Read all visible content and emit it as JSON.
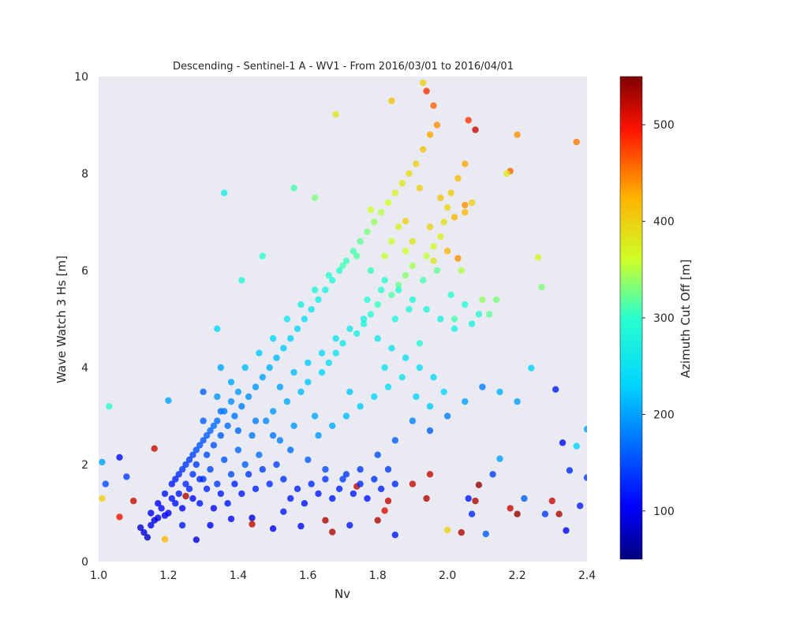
{
  "chart_data": {
    "type": "scatter",
    "title": "Descending - Sentinel-1 A - WV1 - From 2016/03/01 to 2016/04/01",
    "xlabel": "Nv",
    "ylabel": "Wave Watch 3 Hs [m]",
    "xlim": [
      1.0,
      2.4
    ],
    "ylim": [
      0,
      10
    ],
    "x_ticks": [
      "1.0",
      "1.2",
      "1.4",
      "1.6",
      "1.8",
      "2.0",
      "2.2",
      "2.4"
    ],
    "y_ticks": [
      "0",
      "2",
      "4",
      "6",
      "8",
      "10"
    ],
    "grid": false,
    "colorbar": {
      "label": "Azimuth Cut Off [m]",
      "range": [
        50,
        550
      ],
      "ticks": [
        "100",
        "200",
        "300",
        "400",
        "500"
      ],
      "colormap": "jet"
    },
    "points": [
      [
        1.13,
        0.6,
        90
      ],
      [
        1.15,
        0.75,
        100
      ],
      [
        1.17,
        0.9,
        95
      ],
      [
        1.12,
        0.7,
        85
      ],
      [
        1.18,
        1.1,
        110
      ],
      [
        1.2,
        1.0,
        100
      ],
      [
        1.14,
        0.5,
        80
      ],
      [
        1.22,
        1.2,
        115
      ],
      [
        1.19,
        0.95,
        105
      ],
      [
        1.16,
        0.85,
        90
      ],
      [
        1.23,
        1.4,
        120
      ],
      [
        1.21,
        1.3,
        115
      ],
      [
        1.25,
        1.6,
        130
      ],
      [
        1.24,
        1.1,
        110
      ],
      [
        1.27,
        1.8,
        135
      ],
      [
        1.26,
        1.5,
        125
      ],
      [
        1.28,
        2.0,
        140
      ],
      [
        1.3,
        1.7,
        140
      ],
      [
        1.29,
        1.2,
        120
      ],
      [
        1.31,
        2.2,
        150
      ],
      [
        1.32,
        1.9,
        145
      ],
      [
        1.33,
        2.4,
        155
      ],
      [
        1.34,
        1.6,
        140
      ],
      [
        1.35,
        2.6,
        160
      ],
      [
        1.36,
        2.1,
        155
      ],
      [
        1.37,
        2.8,
        170
      ],
      [
        1.38,
        1.8,
        150
      ],
      [
        1.39,
        3.0,
        175
      ],
      [
        1.4,
        2.3,
        165
      ],
      [
        1.41,
        3.2,
        180
      ],
      [
        1.42,
        2.0,
        160
      ],
      [
        1.43,
        3.4,
        190
      ],
      [
        1.44,
        2.6,
        175
      ],
      [
        1.45,
        3.6,
        195
      ],
      [
        1.46,
        2.2,
        170
      ],
      [
        1.47,
        3.8,
        200
      ],
      [
        1.48,
        2.9,
        185
      ],
      [
        1.49,
        4.0,
        210
      ],
      [
        1.5,
        3.1,
        195
      ],
      [
        1.51,
        4.2,
        215
      ],
      [
        1.52,
        2.5,
        180
      ],
      [
        1.53,
        4.4,
        225
      ],
      [
        1.54,
        3.3,
        205
      ],
      [
        1.55,
        4.6,
        230
      ],
      [
        1.56,
        2.8,
        195
      ],
      [
        1.57,
        4.8,
        240
      ],
      [
        1.58,
        3.5,
        215
      ],
      [
        1.59,
        5.0,
        250
      ],
      [
        1.6,
        3.7,
        225
      ],
      [
        1.61,
        5.2,
        260
      ],
      [
        1.62,
        3.0,
        205
      ],
      [
        1.63,
        5.4,
        270
      ],
      [
        1.64,
        3.9,
        235
      ],
      [
        1.65,
        5.6,
        280
      ],
      [
        1.66,
        4.1,
        245
      ],
      [
        1.67,
        5.8,
        290
      ],
      [
        1.68,
        4.3,
        255
      ],
      [
        1.69,
        6.0,
        300
      ],
      [
        1.7,
        4.5,
        265
      ],
      [
        1.71,
        6.2,
        305
      ],
      [
        1.72,
        3.5,
        225
      ],
      [
        1.73,
        6.4,
        310
      ],
      [
        1.74,
        4.7,
        275
      ],
      [
        1.75,
        6.6,
        320
      ],
      [
        1.76,
        4.9,
        285
      ],
      [
        1.77,
        6.8,
        330
      ],
      [
        1.78,
        5.1,
        295
      ],
      [
        1.79,
        7.0,
        340
      ],
      [
        1.8,
        5.3,
        305
      ],
      [
        1.81,
        7.2,
        350
      ],
      [
        1.82,
        4.0,
        255
      ],
      [
        1.83,
        7.4,
        360
      ],
      [
        1.84,
        5.5,
        315
      ],
      [
        1.85,
        7.6,
        370
      ],
      [
        1.86,
        5.7,
        325
      ],
      [
        1.87,
        7.8,
        380
      ],
      [
        1.88,
        5.9,
        335
      ],
      [
        1.89,
        8.0,
        390
      ],
      [
        1.9,
        6.1,
        345
      ],
      [
        1.91,
        8.2,
        400
      ],
      [
        1.92,
        4.5,
        290
      ],
      [
        1.93,
        8.5,
        410
      ],
      [
        1.94,
        6.3,
        355
      ],
      [
        1.95,
        8.8,
        430
      ],
      [
        1.96,
        6.5,
        365
      ],
      [
        1.97,
        9.0,
        440
      ],
      [
        1.98,
        6.7,
        375
      ],
      [
        1.99,
        7.0,
        385
      ],
      [
        2.0,
        7.3,
        395
      ],
      [
        2.01,
        7.6,
        405
      ],
      [
        2.02,
        5.0,
        310
      ],
      [
        2.03,
        7.9,
        415
      ],
      [
        2.04,
        6.0,
        350
      ],
      [
        2.05,
        8.2,
        430
      ],
      [
        2.06,
        9.1,
        480
      ],
      [
        2.07,
        7.4,
        400
      ],
      [
        2.08,
        8.9,
        520
      ],
      [
        2.1,
        5.4,
        340
      ],
      [
        2.12,
        5.1,
        320
      ],
      [
        2.14,
        5.4,
        330
      ],
      [
        1.36,
        7.6,
        270
      ],
      [
        1.34,
        4.8,
        235
      ],
      [
        1.03,
        3.2,
        300
      ],
      [
        1.01,
        2.05,
        200
      ],
      [
        1.02,
        1.6,
        150
      ],
      [
        1.01,
        1.3,
        400
      ],
      [
        1.06,
        2.15,
        110
      ],
      [
        1.06,
        0.92,
        500
      ],
      [
        1.1,
        1.25,
        520
      ],
      [
        1.08,
        1.75,
        140
      ],
      [
        1.16,
        2.33,
        520
      ],
      [
        1.19,
        0.46,
        420
      ],
      [
        1.2,
        3.32,
        200
      ],
      [
        1.24,
        0.75,
        120
      ],
      [
        1.25,
        1.35,
        530
      ],
      [
        1.28,
        0.45,
        90
      ],
      [
        1.3,
        3.5,
        160
      ],
      [
        1.32,
        0.75,
        100
      ],
      [
        1.35,
        4.0,
        200
      ],
      [
        1.38,
        0.88,
        110
      ],
      [
        1.44,
        0.9,
        90
      ],
      [
        1.44,
        0.77,
        520
      ],
      [
        1.5,
        0.68,
        100
      ],
      [
        1.53,
        1.03,
        120
      ],
      [
        1.58,
        0.73,
        110
      ],
      [
        1.65,
        0.85,
        530
      ],
      [
        1.67,
        0.61,
        530
      ],
      [
        1.72,
        0.75,
        120
      ],
      [
        1.74,
        1.55,
        520
      ],
      [
        1.8,
        0.85,
        530
      ],
      [
        1.82,
        1.05,
        510
      ],
      [
        1.83,
        1.25,
        520
      ],
      [
        1.85,
        0.55,
        120
      ],
      [
        1.9,
        1.6,
        520
      ],
      [
        1.94,
        1.3,
        530
      ],
      [
        1.95,
        1.8,
        520
      ],
      [
        2.0,
        0.65,
        400
      ],
      [
        2.04,
        0.6,
        530
      ],
      [
        2.06,
        1.3,
        120
      ],
      [
        2.07,
        0.98,
        130
      ],
      [
        2.08,
        1.25,
        530
      ],
      [
        2.09,
        1.58,
        540
      ],
      [
        2.11,
        0.57,
        160
      ],
      [
        2.13,
        1.8,
        140
      ],
      [
        2.15,
        2.12,
        200
      ],
      [
        2.18,
        1.1,
        520
      ],
      [
        2.2,
        0.98,
        540
      ],
      [
        2.22,
        1.3,
        160
      ],
      [
        2.24,
        3.99,
        230
      ],
      [
        2.26,
        6.27,
        370
      ],
      [
        2.27,
        5.66,
        330
      ],
      [
        2.28,
        0.98,
        140
      ],
      [
        2.3,
        1.25,
        520
      ],
      [
        2.31,
        3.55,
        120
      ],
      [
        2.32,
        0.98,
        530
      ],
      [
        2.33,
        2.45,
        110
      ],
      [
        2.34,
        0.64,
        100
      ],
      [
        2.35,
        1.88,
        130
      ],
      [
        2.37,
        2.38,
        230
      ],
      [
        2.37,
        8.65,
        450
      ],
      [
        2.38,
        1.15,
        120
      ],
      [
        2.4,
        1.73,
        140
      ],
      [
        2.4,
        2.73,
        200
      ],
      [
        2.2,
        8.8,
        440
      ],
      [
        2.18,
        8.05,
        460
      ],
      [
        2.17,
        8.0,
        380
      ],
      [
        2.05,
        7.35,
        440
      ],
      [
        2.05,
        7.2,
        420
      ],
      [
        1.96,
        9.4,
        460
      ],
      [
        1.94,
        9.7,
        480
      ],
      [
        1.93,
        9.87,
        400
      ],
      [
        1.84,
        9.5,
        410
      ],
      [
        1.68,
        9.22,
        380
      ],
      [
        1.88,
        7.02,
        400
      ],
      [
        2.0,
        6.4,
        420
      ],
      [
        2.03,
        6.25,
        440
      ],
      [
        1.78,
        7.25,
        360
      ],
      [
        1.62,
        7.5,
        330
      ],
      [
        1.56,
        7.7,
        310
      ],
      [
        1.47,
        6.3,
        300
      ],
      [
        1.41,
        5.8,
        290
      ],
      [
        1.3,
        2.9,
        160
      ],
      [
        1.35,
        3.1,
        170
      ],
      [
        1.4,
        2.7,
        165
      ],
      [
        1.45,
        2.9,
        180
      ],
      [
        1.5,
        2.6,
        175
      ],
      [
        1.55,
        2.3,
        170
      ],
      [
        1.6,
        2.1,
        160
      ],
      [
        1.65,
        1.9,
        150
      ],
      [
        1.7,
        1.7,
        140
      ],
      [
        1.75,
        1.9,
        140
      ],
      [
        1.8,
        2.2,
        150
      ],
      [
        1.85,
        2.5,
        160
      ],
      [
        1.9,
        2.9,
        180
      ],
      [
        1.95,
        2.7,
        160
      ],
      [
        2.0,
        3.0,
        180
      ],
      [
        2.05,
        3.3,
        200
      ],
      [
        2.1,
        3.6,
        180
      ],
      [
        2.15,
        3.5,
        210
      ],
      [
        2.2,
        3.3,
        200
      ],
      [
        1.27,
        1.3,
        110
      ],
      [
        1.29,
        1.7,
        130
      ],
      [
        1.31,
        1.5,
        125
      ],
      [
        1.33,
        1.1,
        110
      ],
      [
        1.35,
        1.4,
        120
      ],
      [
        1.37,
        1.2,
        115
      ],
      [
        1.39,
        1.6,
        125
      ],
      [
        1.41,
        1.4,
        120
      ],
      [
        1.43,
        1.8,
        135
      ],
      [
        1.45,
        1.5,
        125
      ],
      [
        1.47,
        1.9,
        140
      ],
      [
        1.49,
        1.6,
        130
      ],
      [
        1.51,
        2.0,
        145
      ],
      [
        1.53,
        1.7,
        135
      ],
      [
        1.55,
        1.3,
        120
      ],
      [
        1.57,
        1.5,
        125
      ],
      [
        1.59,
        1.2,
        115
      ],
      [
        1.61,
        1.6,
        130
      ],
      [
        1.63,
        1.4,
        120
      ],
      [
        1.65,
        1.7,
        135
      ],
      [
        1.67,
        1.3,
        115
      ],
      [
        1.69,
        1.5,
        125
      ],
      [
        1.71,
        1.8,
        140
      ],
      [
        1.73,
        1.4,
        120
      ],
      [
        1.75,
        1.6,
        130
      ],
      [
        1.77,
        1.3,
        115
      ],
      [
        1.79,
        1.7,
        135
      ],
      [
        1.81,
        1.5,
        125
      ],
      [
        1.83,
        1.9,
        140
      ],
      [
        1.85,
        1.6,
        130
      ],
      [
        1.52,
        3.6,
        200
      ],
      [
        1.56,
        3.9,
        215
      ],
      [
        1.6,
        4.1,
        225
      ],
      [
        1.64,
        4.3,
        240
      ],
      [
        1.68,
        4.6,
        255
      ],
      [
        1.72,
        4.8,
        265
      ],
      [
        1.76,
        5.0,
        275
      ],
      [
        1.8,
        4.6,
        260
      ],
      [
        1.84,
        4.4,
        255
      ],
      [
        1.88,
        4.2,
        250
      ],
      [
        1.92,
        4.0,
        245
      ],
      [
        1.96,
        3.8,
        240
      ],
      [
        1.54,
        5.0,
        260
      ],
      [
        1.58,
        5.3,
        270
      ],
      [
        1.62,
        5.6,
        285
      ],
      [
        1.66,
        5.9,
        300
      ],
      [
        1.7,
        6.1,
        310
      ],
      [
        1.74,
        6.3,
        315
      ],
      [
        1.78,
        6.0,
        305
      ],
      [
        1.82,
        5.8,
        300
      ],
      [
        1.86,
        5.6,
        295
      ],
      [
        1.9,
        5.4,
        290
      ],
      [
        1.94,
        5.2,
        285
      ],
      [
        1.98,
        5.0,
        280
      ],
      [
        2.02,
        4.8,
        275
      ],
      [
        1.5,
        4.6,
        235
      ],
      [
        1.46,
        4.3,
        225
      ],
      [
        1.42,
        4.0,
        215
      ],
      [
        1.38,
        3.7,
        205
      ],
      [
        1.34,
        3.4,
        195
      ],
      [
        1.22,
        1.7,
        125
      ],
      [
        1.24,
        1.9,
        135
      ],
      [
        1.26,
        2.1,
        140
      ],
      [
        1.28,
        2.3,
        150
      ],
      [
        1.3,
        2.5,
        155
      ],
      [
        1.32,
        2.7,
        165
      ],
      [
        1.34,
        2.9,
        170
      ],
      [
        1.36,
        3.1,
        180
      ],
      [
        1.38,
        3.3,
        190
      ],
      [
        1.4,
        3.5,
        195
      ],
      [
        1.15,
        1.0,
        95
      ],
      [
        1.17,
        1.2,
        105
      ],
      [
        1.19,
        1.4,
        115
      ],
      [
        1.21,
        1.6,
        120
      ],
      [
        1.23,
        1.8,
        130
      ],
      [
        1.25,
        2.0,
        140
      ],
      [
        1.27,
        2.2,
        145
      ],
      [
        1.29,
        2.4,
        155
      ],
      [
        1.31,
        2.6,
        160
      ],
      [
        1.33,
        2.8,
        170
      ],
      [
        1.63,
        2.6,
        195
      ],
      [
        1.67,
        2.8,
        205
      ],
      [
        1.71,
        3.0,
        215
      ],
      [
        1.75,
        3.2,
        225
      ],
      [
        1.79,
        3.4,
        235
      ],
      [
        1.83,
        3.6,
        245
      ],
      [
        1.87,
        3.8,
        255
      ],
      [
        1.91,
        3.4,
        235
      ],
      [
        1.95,
        3.2,
        225
      ],
      [
        1.99,
        3.5,
        235
      ],
      [
        1.77,
        5.4,
        295
      ],
      [
        1.81,
        5.6,
        300
      ],
      [
        1.85,
        5.0,
        285
      ],
      [
        1.89,
        5.2,
        290
      ],
      [
        1.93,
        5.8,
        310
      ],
      [
        1.97,
        6.0,
        320
      ],
      [
        2.01,
        5.5,
        300
      ],
      [
        2.05,
        5.3,
        295
      ],
      [
        2.09,
        5.1,
        290
      ],
      [
        2.07,
        4.9,
        280
      ],
      [
        1.9,
        6.6,
        380
      ],
      [
        1.95,
        6.9,
        400
      ],
      [
        1.98,
        7.5,
        410
      ],
      [
        2.02,
        7.1,
        420
      ],
      [
        1.92,
        7.7,
        400
      ],
      [
        1.86,
        6.9,
        370
      ],
      [
        1.84,
        6.6,
        360
      ],
      [
        1.82,
        6.3,
        355
      ],
      [
        1.88,
        6.4,
        360
      ],
      [
        1.96,
        6.2,
        380
      ]
    ]
  }
}
